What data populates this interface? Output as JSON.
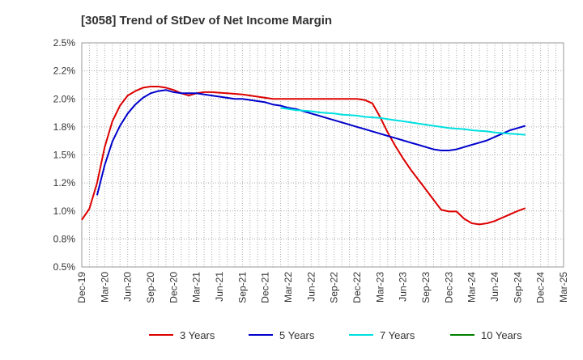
{
  "chart_data": {
    "type": "line",
    "title": "[3058]  Trend of StDev of Net Income Margin",
    "xlabel": "",
    "ylabel": "",
    "x_ticks": [
      "Dec-19",
      "Mar-20",
      "Jun-20",
      "Sep-20",
      "Dec-20",
      "Mar-21",
      "Jun-21",
      "Sep-21",
      "Dec-21",
      "Mar-22",
      "Jun-22",
      "Sep-22",
      "Dec-22",
      "Mar-23",
      "Jun-23",
      "Sep-23",
      "Dec-23",
      "Mar-24",
      "Jun-24",
      "Sep-24",
      "Dec-24",
      "Mar-25"
    ],
    "y_ticks": [
      "0.5%",
      "0.8%",
      "1.0%",
      "1.2%",
      "1.5%",
      "1.8%",
      "2.0%",
      "2.2%",
      "2.5%"
    ],
    "ylim": [
      0.5,
      2.5
    ],
    "y_unit": "%",
    "grid": true,
    "legend_position": "bottom",
    "series": [
      {
        "name": "3 Years",
        "color": "#dd0000",
        "points": [
          [
            0,
            0.92
          ],
          [
            1,
            1.02
          ],
          [
            2,
            1.25
          ],
          [
            3,
            1.57
          ],
          [
            4,
            1.8
          ],
          [
            5,
            1.94
          ],
          [
            6,
            2.03
          ],
          [
            7,
            2.07
          ],
          [
            8,
            2.1
          ],
          [
            9,
            2.11
          ],
          [
            10,
            2.11
          ],
          [
            11,
            2.1
          ],
          [
            12,
            2.08
          ],
          [
            13,
            2.05
          ],
          [
            14,
            2.03
          ],
          [
            15,
            2.05
          ],
          [
            16,
            2.06
          ],
          [
            17,
            2.06
          ],
          [
            18,
            2.055
          ],
          [
            19,
            2.05
          ],
          [
            20,
            2.045
          ],
          [
            21,
            2.04
          ],
          [
            22,
            2.03
          ],
          [
            23,
            2.02
          ],
          [
            24,
            2.01
          ],
          [
            25,
            2.0
          ],
          [
            26,
            2.0
          ],
          [
            27,
            2.0
          ],
          [
            28,
            2.0
          ],
          [
            29,
            2.0
          ],
          [
            30,
            2.0
          ],
          [
            31,
            2.0
          ],
          [
            32,
            2.0
          ],
          [
            33,
            2.0
          ],
          [
            34,
            2.0
          ],
          [
            35,
            2.0
          ],
          [
            36,
            2.0
          ],
          [
            37,
            1.99
          ],
          [
            38,
            1.96
          ],
          [
            39,
            1.84
          ],
          [
            40,
            1.7
          ],
          [
            41,
            1.58
          ],
          [
            42,
            1.47
          ],
          [
            43,
            1.37
          ],
          [
            44,
            1.28
          ],
          [
            45,
            1.19
          ],
          [
            46,
            1.1
          ],
          [
            47,
            1.01
          ],
          [
            48,
            0.995
          ],
          [
            49,
            0.995
          ],
          [
            50,
            0.93
          ],
          [
            51,
            0.89
          ],
          [
            52,
            0.88
          ],
          [
            53,
            0.89
          ],
          [
            54,
            0.91
          ],
          [
            55,
            0.94
          ],
          [
            56,
            0.97
          ],
          [
            57,
            1.0
          ],
          [
            58,
            1.025
          ]
        ]
      },
      {
        "name": "5 Years",
        "color": "#0000cc",
        "points": [
          [
            2,
            1.14
          ],
          [
            3,
            1.41
          ],
          [
            4,
            1.62
          ],
          [
            5,
            1.76
          ],
          [
            6,
            1.87
          ],
          [
            7,
            1.95
          ],
          [
            8,
            2.01
          ],
          [
            9,
            2.05
          ],
          [
            10,
            2.07
          ],
          [
            11,
            2.08
          ],
          [
            12,
            2.06
          ],
          [
            13,
            2.05
          ],
          [
            14,
            2.05
          ],
          [
            15,
            2.05
          ],
          [
            16,
            2.04
          ],
          [
            17,
            2.03
          ],
          [
            18,
            2.02
          ],
          [
            19,
            2.01
          ],
          [
            20,
            2.0
          ],
          [
            21,
            2.0
          ],
          [
            22,
            1.99
          ],
          [
            23,
            1.98
          ],
          [
            24,
            1.97
          ],
          [
            25,
            1.95
          ],
          [
            26,
            1.94
          ],
          [
            27,
            1.92
          ],
          [
            28,
            1.91
          ],
          [
            29,
            1.89
          ],
          [
            30,
            1.87
          ],
          [
            31,
            1.85
          ],
          [
            32,
            1.83
          ],
          [
            33,
            1.81
          ],
          [
            34,
            1.79
          ],
          [
            35,
            1.77
          ],
          [
            36,
            1.75
          ],
          [
            37,
            1.73
          ],
          [
            38,
            1.71
          ],
          [
            39,
            1.69
          ],
          [
            40,
            1.67
          ],
          [
            41,
            1.65
          ],
          [
            42,
            1.63
          ],
          [
            43,
            1.61
          ],
          [
            44,
            1.59
          ],
          [
            45,
            1.57
          ],
          [
            46,
            1.55
          ],
          [
            47,
            1.54
          ],
          [
            48,
            1.54
          ],
          [
            49,
            1.55
          ],
          [
            50,
            1.57
          ],
          [
            51,
            1.59
          ],
          [
            52,
            1.61
          ],
          [
            53,
            1.63
          ],
          [
            54,
            1.66
          ],
          [
            55,
            1.69
          ],
          [
            56,
            1.72
          ],
          [
            57,
            1.74
          ],
          [
            58,
            1.76
          ]
        ]
      },
      {
        "name": "7 Years",
        "color": "#00e0e0",
        "points": [
          [
            26,
            1.92
          ],
          [
            27,
            1.91
          ],
          [
            28,
            1.9
          ],
          [
            29,
            1.895
          ],
          [
            30,
            1.89
          ],
          [
            31,
            1.88
          ],
          [
            32,
            1.875
          ],
          [
            33,
            1.87
          ],
          [
            34,
            1.86
          ],
          [
            35,
            1.855
          ],
          [
            36,
            1.85
          ],
          [
            37,
            1.84
          ],
          [
            38,
            1.835
          ],
          [
            39,
            1.83
          ],
          [
            40,
            1.82
          ],
          [
            41,
            1.81
          ],
          [
            42,
            1.8
          ],
          [
            43,
            1.79
          ],
          [
            44,
            1.78
          ],
          [
            45,
            1.77
          ],
          [
            46,
            1.76
          ],
          [
            47,
            1.75
          ],
          [
            48,
            1.74
          ],
          [
            49,
            1.735
          ],
          [
            50,
            1.73
          ],
          [
            51,
            1.72
          ],
          [
            52,
            1.715
          ],
          [
            53,
            1.71
          ],
          [
            54,
            1.7
          ],
          [
            55,
            1.695
          ],
          [
            56,
            1.69
          ],
          [
            57,
            1.685
          ],
          [
            58,
            1.68
          ]
        ]
      },
      {
        "name": "10 Years",
        "color": "#008000",
        "points": []
      }
    ]
  }
}
